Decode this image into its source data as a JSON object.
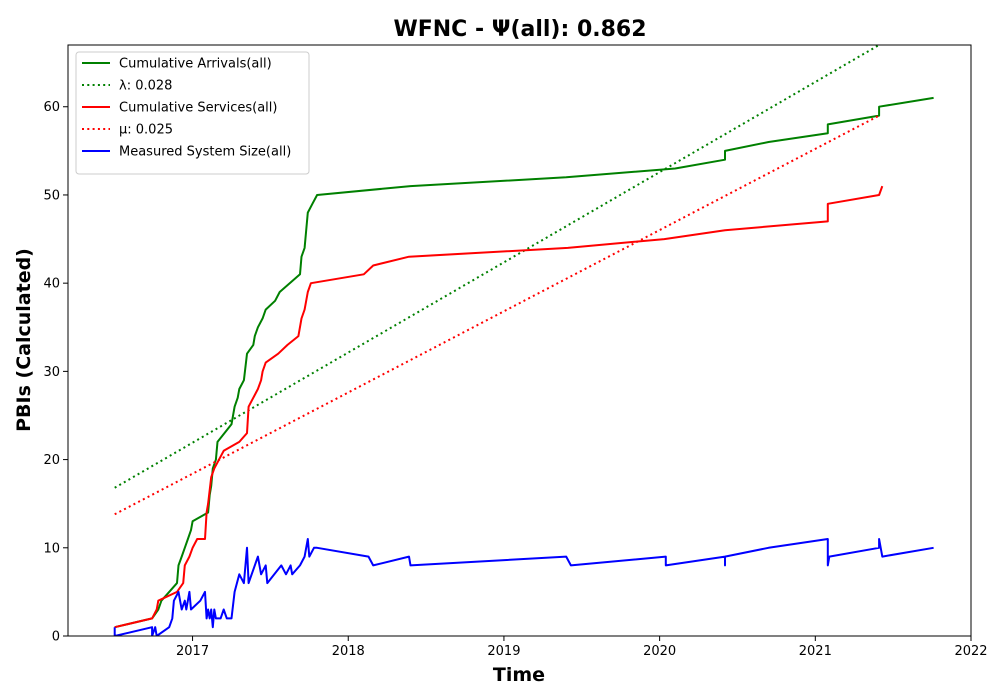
{
  "chart_data": {
    "type": "line",
    "title": "WFNC -  Ψ(all): 0.862",
    "xlabel": "Time",
    "ylabel": "PBIs (Calculated)",
    "xlim": [
      2016.2,
      2022.0
    ],
    "ylim": [
      0,
      67
    ],
    "x_ticks": [
      2017,
      2018,
      2019,
      2020,
      2021,
      2022
    ],
    "x_tick_labels": [
      "2017",
      "2018",
      "2019",
      "2020",
      "2021",
      "2022"
    ],
    "y_ticks": [
      0,
      10,
      20,
      30,
      40,
      50,
      60
    ],
    "y_tick_labels": [
      "0",
      "10",
      "20",
      "30",
      "40",
      "50",
      "60"
    ],
    "grid": false,
    "legend_position": "top-left",
    "series": [
      {
        "name": "Cumulative Arrivals(all)",
        "color": "#008000",
        "style": "solid",
        "points": [
          [
            2016.5,
            1
          ],
          [
            2016.74,
            2
          ],
          [
            2016.78,
            3
          ],
          [
            2016.8,
            4
          ],
          [
            2016.85,
            5
          ],
          [
            2016.9,
            6
          ],
          [
            2016.91,
            8
          ],
          [
            2016.93,
            9
          ],
          [
            2016.95,
            10
          ],
          [
            2016.97,
            11
          ],
          [
            2016.99,
            12
          ],
          [
            2017.0,
            13
          ],
          [
            2017.1,
            14
          ],
          [
            2017.11,
            16
          ],
          [
            2017.12,
            17
          ],
          [
            2017.13,
            19
          ],
          [
            2017.15,
            20
          ],
          [
            2017.16,
            22
          ],
          [
            2017.25,
            24
          ],
          [
            2017.27,
            26
          ],
          [
            2017.29,
            27
          ],
          [
            2017.3,
            28
          ],
          [
            2017.33,
            29
          ],
          [
            2017.35,
            32
          ],
          [
            2017.39,
            33
          ],
          [
            2017.4,
            34
          ],
          [
            2017.42,
            35
          ],
          [
            2017.45,
            36
          ],
          [
            2017.47,
            37
          ],
          [
            2017.53,
            38
          ],
          [
            2017.56,
            39
          ],
          [
            2017.69,
            41
          ],
          [
            2017.7,
            43
          ],
          [
            2017.72,
            44
          ],
          [
            2017.73,
            46
          ],
          [
            2017.74,
            48
          ],
          [
            2017.77,
            49
          ],
          [
            2017.8,
            50
          ],
          [
            2018.4,
            51
          ],
          [
            2019.4,
            52
          ],
          [
            2020.1,
            53
          ],
          [
            2020.42,
            54
          ],
          [
            2020.42,
            55
          ],
          [
            2020.7,
            56
          ],
          [
            2021.08,
            57
          ],
          [
            2021.08,
            58
          ],
          [
            2021.41,
            59
          ],
          [
            2021.41,
            60
          ],
          [
            2021.76,
            61
          ]
        ]
      },
      {
        "name": "λ: 0.028",
        "color": "#008000",
        "style": "dotted",
        "points": [
          [
            2016.5,
            16.8
          ],
          [
            2021.41,
            67
          ]
        ]
      },
      {
        "name": "Cumulative Services(all)",
        "color": "#ff0000",
        "style": "solid",
        "points": [
          [
            2016.5,
            1
          ],
          [
            2016.74,
            2
          ],
          [
            2016.77,
            3
          ],
          [
            2016.78,
            4
          ],
          [
            2016.9,
            5
          ],
          [
            2016.94,
            6
          ],
          [
            2016.95,
            8
          ],
          [
            2016.98,
            9
          ],
          [
            2017.0,
            10
          ],
          [
            2017.03,
            11
          ],
          [
            2017.08,
            11
          ],
          [
            2017.09,
            14
          ],
          [
            2017.1,
            15
          ],
          [
            2017.12,
            18
          ],
          [
            2017.14,
            19
          ],
          [
            2017.2,
            21
          ],
          [
            2017.3,
            22
          ],
          [
            2017.35,
            23
          ],
          [
            2017.36,
            26
          ],
          [
            2017.42,
            28
          ],
          [
            2017.44,
            29
          ],
          [
            2017.45,
            30
          ],
          [
            2017.47,
            31
          ],
          [
            2017.55,
            32
          ],
          [
            2017.61,
            33
          ],
          [
            2017.68,
            34
          ],
          [
            2017.7,
            36
          ],
          [
            2017.72,
            37
          ],
          [
            2017.74,
            39
          ],
          [
            2017.76,
            40
          ],
          [
            2018.1,
            41
          ],
          [
            2018.16,
            42
          ],
          [
            2018.39,
            43
          ],
          [
            2019.41,
            44
          ],
          [
            2020.03,
            45
          ],
          [
            2020.42,
            46
          ],
          [
            2021.08,
            47
          ],
          [
            2021.08,
            49
          ],
          [
            2021.41,
            50
          ],
          [
            2021.43,
            51
          ]
        ]
      },
      {
        "name": "μ: 0.025",
        "color": "#ff0000",
        "style": "dotted",
        "points": [
          [
            2016.5,
            13.8
          ],
          [
            2021.41,
            59
          ]
        ]
      },
      {
        "name": "Measured System Size(all)",
        "color": "#0000ff",
        "style": "solid",
        "points": [
          [
            2016.5,
            1
          ],
          [
            2016.5,
            0
          ],
          [
            2016.74,
            1
          ],
          [
            2016.74,
            0
          ],
          [
            2016.76,
            1
          ],
          [
            2016.77,
            0
          ],
          [
            2016.85,
            1
          ],
          [
            2016.87,
            2
          ],
          [
            2016.88,
            4
          ],
          [
            2016.91,
            5
          ],
          [
            2016.93,
            3
          ],
          [
            2016.95,
            4
          ],
          [
            2016.96,
            3
          ],
          [
            2016.98,
            5
          ],
          [
            2016.99,
            3
          ],
          [
            2017.05,
            4
          ],
          [
            2017.08,
            5
          ],
          [
            2017.09,
            2
          ],
          [
            2017.1,
            3
          ],
          [
            2017.11,
            2
          ],
          [
            2017.12,
            3
          ],
          [
            2017.13,
            1
          ],
          [
            2017.14,
            3
          ],
          [
            2017.15,
            2
          ],
          [
            2017.18,
            2
          ],
          [
            2017.2,
            3
          ],
          [
            2017.22,
            2
          ],
          [
            2017.25,
            2
          ],
          [
            2017.27,
            5
          ],
          [
            2017.3,
            7
          ],
          [
            2017.33,
            6
          ],
          [
            2017.35,
            10
          ],
          [
            2017.36,
            6
          ],
          [
            2017.4,
            8
          ],
          [
            2017.42,
            9
          ],
          [
            2017.44,
            7
          ],
          [
            2017.47,
            8
          ],
          [
            2017.48,
            6
          ],
          [
            2017.57,
            8
          ],
          [
            2017.6,
            7
          ],
          [
            2017.63,
            8
          ],
          [
            2017.64,
            7
          ],
          [
            2017.69,
            8
          ],
          [
            2017.72,
            9
          ],
          [
            2017.74,
            11
          ],
          [
            2017.75,
            9
          ],
          [
            2017.78,
            10
          ],
          [
            2017.8,
            10
          ],
          [
            2018.13,
            9
          ],
          [
            2018.16,
            8
          ],
          [
            2018.39,
            9
          ],
          [
            2018.4,
            8
          ],
          [
            2019.4,
            9
          ],
          [
            2019.43,
            8
          ],
          [
            2020.04,
            9
          ],
          [
            2020.04,
            8
          ],
          [
            2020.42,
            9
          ],
          [
            2020.42,
            8
          ],
          [
            2020.42,
            9
          ],
          [
            2020.7,
            10
          ],
          [
            2021.08,
            11
          ],
          [
            2021.08,
            8
          ],
          [
            2021.09,
            9
          ],
          [
            2021.41,
            10
          ],
          [
            2021.41,
            11
          ],
          [
            2021.43,
            9
          ],
          [
            2021.76,
            10
          ]
        ]
      }
    ]
  }
}
